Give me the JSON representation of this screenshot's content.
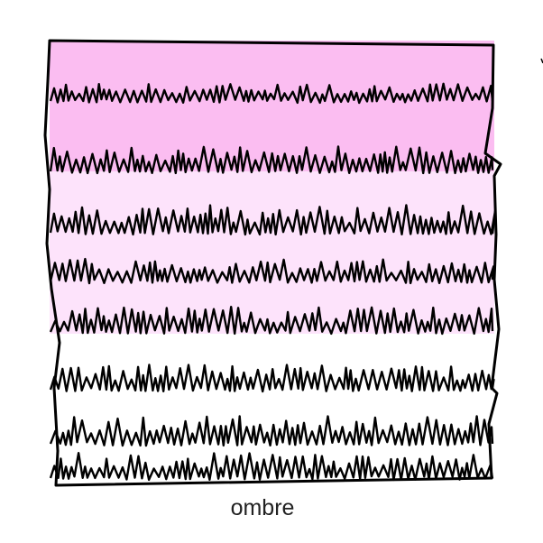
{
  "caption": "ombre",
  "colors": {
    "dark_pink": "#fbbdf1",
    "light_pink": "#fde3fb",
    "white": "#ffffff",
    "ink": "#000000"
  },
  "icon": "fringed-ombre-ruffle-illustration"
}
